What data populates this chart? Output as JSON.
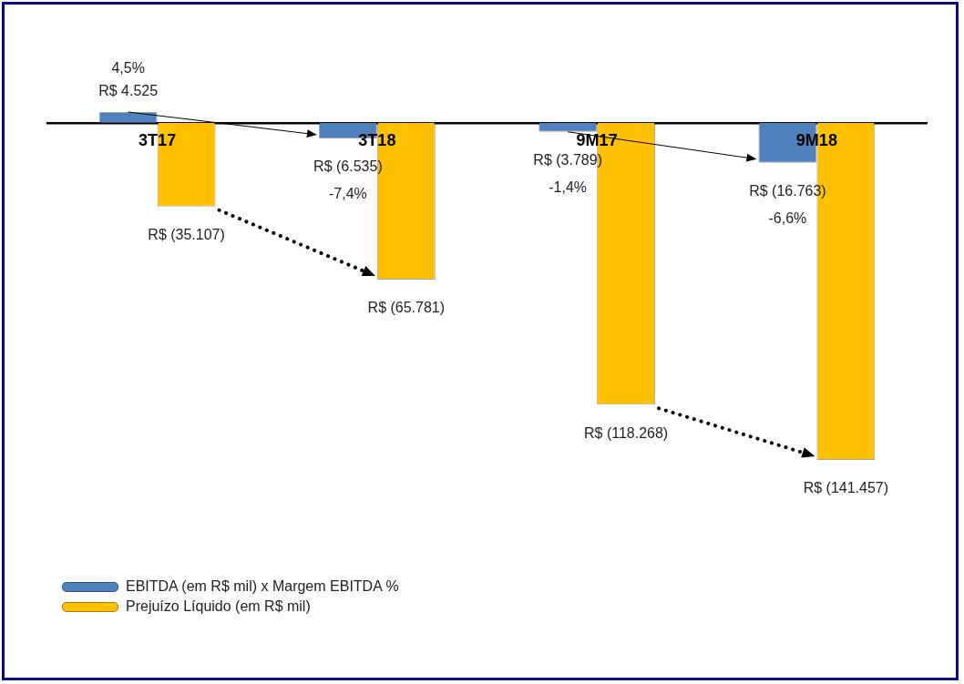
{
  "chart_data": {
    "type": "bar",
    "categories": [
      "3T17",
      "3T18",
      "9M17",
      "9M18"
    ],
    "series": [
      {
        "name": "EBITDA (em R$ mil) x Margem EBITDA %",
        "color": "#4f81bd",
        "values": [
          4525,
          -6535,
          -3789,
          -16763
        ],
        "value_labels": [
          "R$ 4.525",
          "R$ (6.535)",
          "R$ (3.789)",
          "R$ (16.763)"
        ]
      },
      {
        "name": "Prejuízo Líquido (em R$ mil)",
        "color": "#ffc000",
        "values": [
          -35107,
          -65781,
          -118268,
          -141457
        ],
        "value_labels": [
          "R$ (35.107)",
          "R$ (65.781)",
          "R$ (118.268)",
          "R$ (141.457)"
        ]
      }
    ],
    "tick_labels": "x",
    "grid": false,
    "legend": "bottom left",
    "annotations": [
      "4,5%",
      "-7,4%",
      "-1,4%",
      "-6,6%"
    ]
  }
}
